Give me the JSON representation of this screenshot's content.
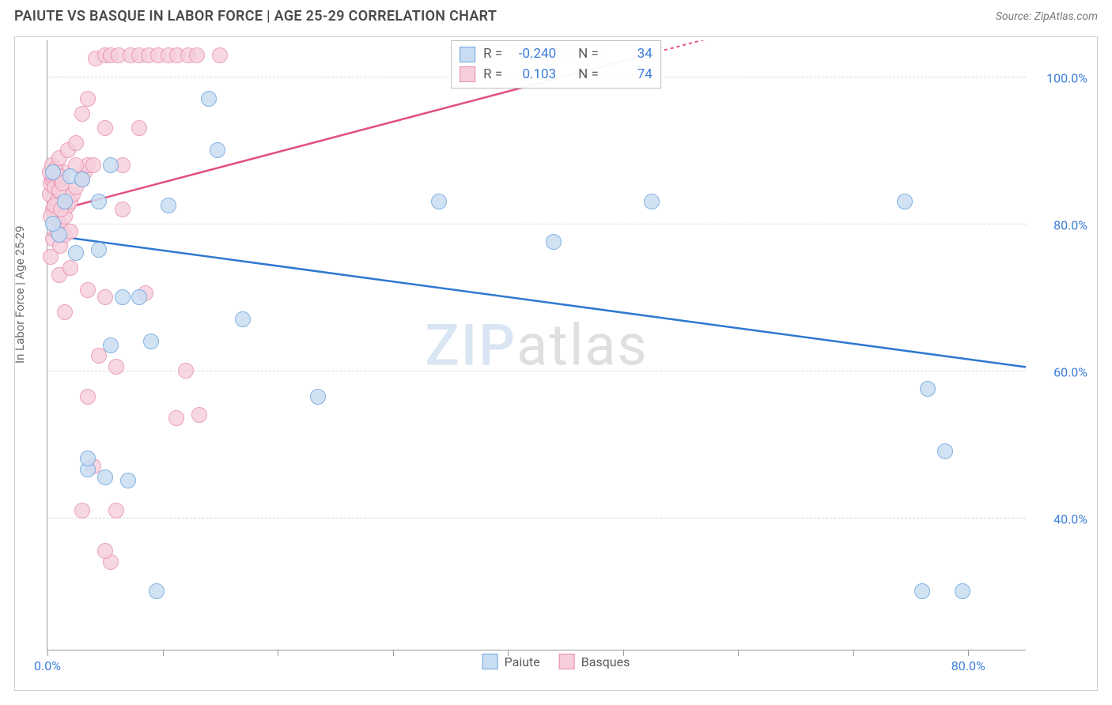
{
  "title": "PAIUTE VS BASQUE IN LABOR FORCE | AGE 25-29 CORRELATION CHART",
  "source": "Source: ZipAtlas.com",
  "y_axis_label": "In Labor Force | Age 25-29",
  "watermark_zip": "ZIP",
  "watermark_atlas": "atlas",
  "x_ticks": [
    {
      "val": 0.0,
      "label": "0.0%"
    },
    {
      "val": 10.0,
      "label": ""
    },
    {
      "val": 20.0,
      "label": ""
    },
    {
      "val": 30.0,
      "label": ""
    },
    {
      "val": 40.0,
      "label": ""
    },
    {
      "val": 50.0,
      "label": ""
    },
    {
      "val": 60.0,
      "label": ""
    },
    {
      "val": 70.0,
      "label": ""
    },
    {
      "val": 80.0,
      "label": "80.0%"
    }
  ],
  "y_ticks": [
    {
      "val": 40.0,
      "label": "40.0%"
    },
    {
      "val": 60.0,
      "label": "60.0%"
    },
    {
      "val": 80.0,
      "label": "80.0%"
    },
    {
      "val": 100.0,
      "label": "100.0%"
    }
  ],
  "xlim": [
    0,
    85
  ],
  "ylim": [
    22,
    105
  ],
  "grid_color": "#d8d8d8",
  "axis_color": "#9a9a9a",
  "background_color": "#ffffff",
  "series": {
    "paiute": {
      "label": "Paiute",
      "fill": "#c9ddf2",
      "stroke": "#6ea6de",
      "line_color": "#2f78d0",
      "marker_radius": 10,
      "marker_opacity": 0.85,
      "R": "-0.240",
      "N": "34",
      "trend": {
        "x1": 0,
        "y1": 78.5,
        "x2": 85,
        "y2": 60.5
      },
      "points": [
        [
          0.5,
          87
        ],
        [
          1.5,
          83
        ],
        [
          2.0,
          86.5
        ],
        [
          3.0,
          86
        ],
        [
          5.5,
          88
        ],
        [
          4.5,
          83
        ],
        [
          10.5,
          82.5
        ],
        [
          14.0,
          97
        ],
        [
          14.8,
          90
        ],
        [
          34.0,
          83
        ],
        [
          44.0,
          77.5
        ],
        [
          52.5,
          83
        ],
        [
          74.5,
          83
        ],
        [
          48.0,
          103
        ],
        [
          45.0,
          103
        ],
        [
          5.5,
          63.5
        ],
        [
          6.5,
          70
        ],
        [
          8.0,
          70
        ],
        [
          7.0,
          45
        ],
        [
          5.0,
          45.5
        ],
        [
          3.5,
          46.5
        ],
        [
          17.0,
          67
        ],
        [
          9.0,
          64
        ],
        [
          23.5,
          56.5
        ],
        [
          76.5,
          57.5
        ],
        [
          78.0,
          49
        ],
        [
          9.5,
          30
        ],
        [
          76.0,
          30
        ],
        [
          79.5,
          30
        ],
        [
          1.0,
          78.5
        ],
        [
          2.5,
          76
        ],
        [
          0.5,
          80
        ],
        [
          4.5,
          76.5
        ],
        [
          3.5,
          48
        ]
      ]
    },
    "basques": {
      "label": "Basques",
      "fill": "#f6cedb",
      "stroke": "#e88aac",
      "line_color": "#e24f84",
      "marker_radius": 10,
      "marker_opacity": 0.8,
      "R": "0.103",
      "N": "74",
      "trend": {
        "x1": 0,
        "y1": 81.5,
        "x2": 52,
        "y2": 103
      },
      "points": [
        [
          0.2,
          84
        ],
        [
          0.3,
          85.5
        ],
        [
          0.4,
          86
        ],
        [
          0.5,
          86.5
        ],
        [
          0.6,
          85
        ],
        [
          0.5,
          82
        ],
        [
          0.8,
          83
        ],
        [
          1.0,
          84.5
        ],
        [
          1.2,
          86
        ],
        [
          1.4,
          87
        ],
        [
          1.0,
          80
        ],
        [
          1.5,
          81
        ],
        [
          1.8,
          82.5
        ],
        [
          2.0,
          83
        ],
        [
          2.2,
          84
        ],
        [
          0.2,
          87
        ],
        [
          0.4,
          88
        ],
        [
          0.7,
          87.5
        ],
        [
          1.0,
          86.5
        ],
        [
          1.3,
          85.5
        ],
        [
          2.5,
          85
        ],
        [
          3.0,
          86
        ],
        [
          3.2,
          87
        ],
        [
          3.5,
          88
        ],
        [
          0.5,
          78
        ],
        [
          0.8,
          79
        ],
        [
          1.1,
          77
        ],
        [
          1.5,
          78.5
        ],
        [
          2.0,
          79
        ],
        [
          0.3,
          75.5
        ],
        [
          1.0,
          73
        ],
        [
          2.0,
          74
        ],
        [
          3.0,
          95
        ],
        [
          3.5,
          97
        ],
        [
          4.2,
          102.5
        ],
        [
          5.0,
          103
        ],
        [
          5.5,
          103
        ],
        [
          6.2,
          103
        ],
        [
          7.2,
          103
        ],
        [
          8.0,
          103
        ],
        [
          8.8,
          103
        ],
        [
          9.6,
          103
        ],
        [
          10.5,
          103
        ],
        [
          11.3,
          103
        ],
        [
          12.2,
          103
        ],
        [
          13.0,
          103
        ],
        [
          15.0,
          103
        ],
        [
          2.5,
          88
        ],
        [
          4.0,
          88
        ],
        [
          6.5,
          88
        ],
        [
          5.0,
          93
        ],
        [
          8.0,
          93
        ],
        [
          3.5,
          71
        ],
        [
          5.0,
          70
        ],
        [
          8.5,
          70.5
        ],
        [
          3.5,
          56.5
        ],
        [
          6.0,
          60.5
        ],
        [
          11.2,
          53.5
        ],
        [
          13.2,
          54
        ],
        [
          12.0,
          60
        ],
        [
          6.5,
          82
        ],
        [
          3.0,
          41
        ],
        [
          6.0,
          41
        ],
        [
          5.5,
          34
        ],
        [
          5.0,
          35.5
        ],
        [
          4.0,
          47
        ],
        [
          4.5,
          62
        ],
        [
          1.5,
          68
        ],
        [
          1.0,
          89
        ],
        [
          1.8,
          90
        ],
        [
          2.5,
          91
        ],
        [
          0.3,
          81
        ],
        [
          0.6,
          82.5
        ],
        [
          1.2,
          82
        ]
      ]
    }
  },
  "stats_labels": {
    "R": "R =",
    "N": "N ="
  }
}
